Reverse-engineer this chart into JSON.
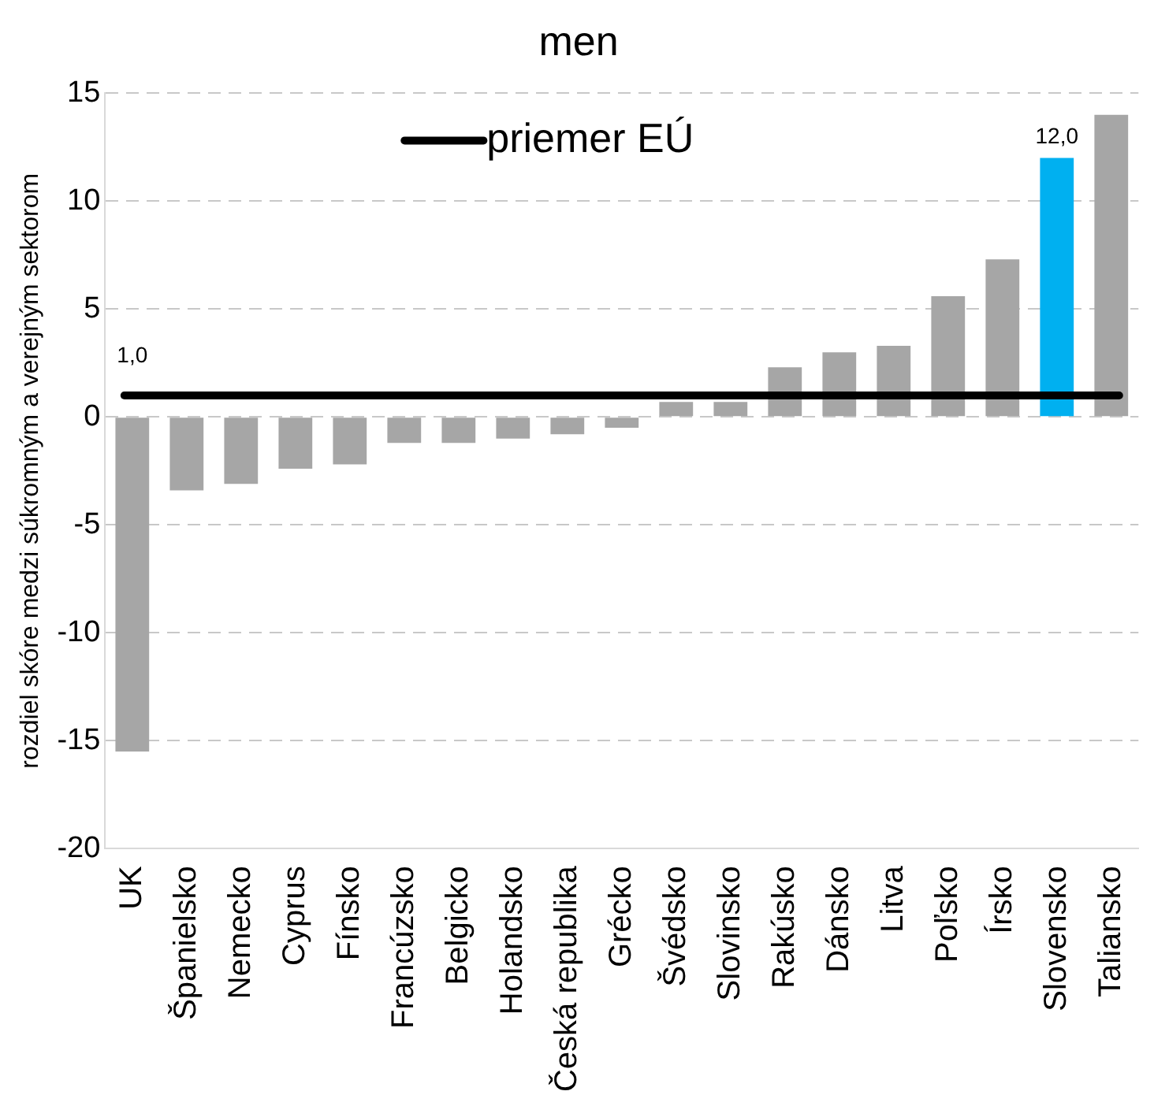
{
  "chart_data": {
    "type": "bar",
    "title": "men",
    "ylabel": "rozdiel skóre medzi súkromným a verejným sektorom",
    "categories": [
      "UK",
      "Španielsko",
      "Nemecko",
      "Cyprus",
      "Fínsko",
      "Francúzsko",
      "Belgicko",
      "Holandsko",
      "Česká republika",
      "Grécko",
      "Švédsko",
      "Slovinsko",
      "Rakúsko",
      "Dánsko",
      "Litva",
      "Poľsko",
      "Írsko",
      "Slovensko",
      "Taliansko"
    ],
    "values": [
      -15.5,
      -3.4,
      -3.1,
      -2.4,
      -2.2,
      -1.2,
      -1.2,
      -1.0,
      -0.8,
      -0.5,
      0.7,
      0.7,
      2.3,
      3.0,
      3.3,
      5.6,
      7.3,
      12.0,
      14.0
    ],
    "colors": [
      "#a6a6a6",
      "#a6a6a6",
      "#a6a6a6",
      "#a6a6a6",
      "#a6a6a6",
      "#a6a6a6",
      "#a6a6a6",
      "#a6a6a6",
      "#a6a6a6",
      "#a6a6a6",
      "#a6a6a6",
      "#a6a6a6",
      "#a6a6a6",
      "#a6a6a6",
      "#a6a6a6",
      "#a6a6a6",
      "#a6a6a6",
      "#00b0f0",
      "#a6a6a6"
    ],
    "value_labels": [
      null,
      null,
      null,
      null,
      null,
      null,
      null,
      null,
      null,
      null,
      null,
      null,
      null,
      null,
      null,
      null,
      null,
      "12,0",
      null
    ],
    "ylim": [
      -20,
      15
    ],
    "yticks": [
      -20,
      -15,
      -10,
      -5,
      0,
      5,
      10,
      15
    ],
    "grid": "y",
    "ref_lines": [
      {
        "axis": "y",
        "value": 1.0,
        "label": "priemer EÚ",
        "color": "#000000"
      }
    ],
    "annotations": [
      {
        "text": "1,0",
        "x": "UK",
        "y": 1.0
      }
    ]
  }
}
